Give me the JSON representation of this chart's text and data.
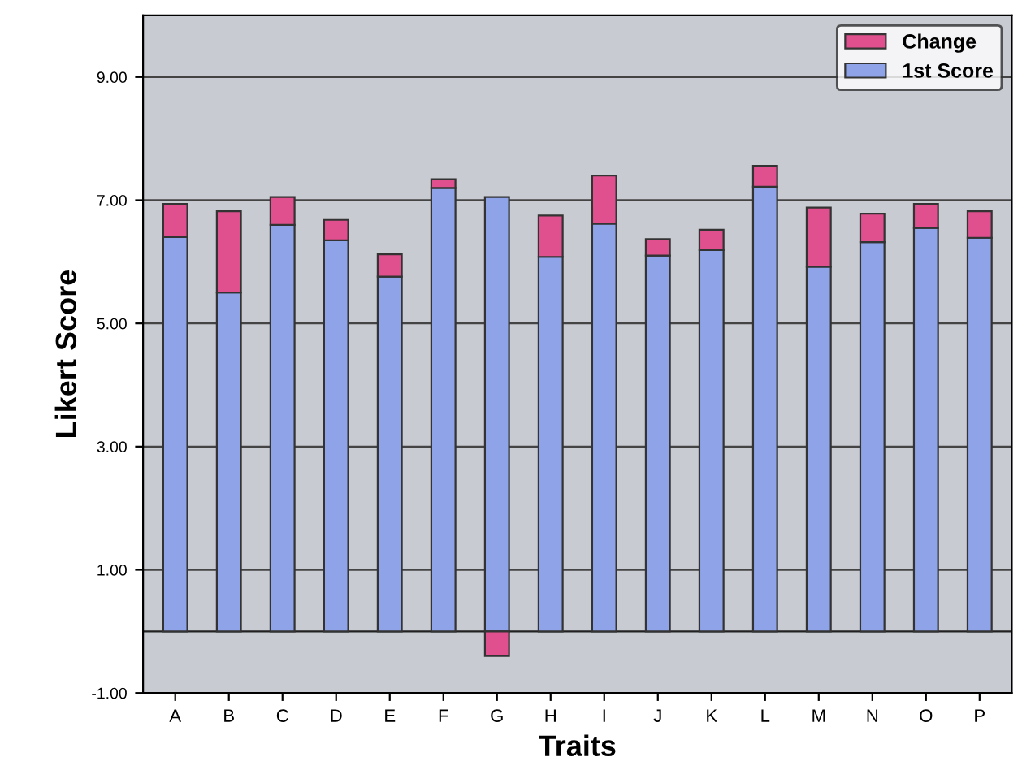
{
  "chart_data": {
    "type": "bar",
    "stacked": true,
    "xlabel": "Traits",
    "ylabel": "Likert Score",
    "categories": [
      "A",
      "B",
      "C",
      "D",
      "E",
      "F",
      "G",
      "H",
      "I",
      "J",
      "K",
      "L",
      "M",
      "N",
      "O",
      "P"
    ],
    "series": [
      {
        "name": "1st Score",
        "color": "#8fa4e8",
        "values": [
          6.4,
          5.5,
          6.6,
          6.35,
          5.76,
          7.2,
          7.05,
          6.08,
          6.62,
          6.1,
          6.19,
          7.22,
          5.92,
          6.32,
          6.55,
          6.39
        ]
      },
      {
        "name": "Change",
        "color": "#e0508f",
        "values": [
          0.54,
          1.32,
          0.45,
          0.33,
          0.36,
          0.14,
          -0.4,
          0.67,
          0.78,
          0.27,
          0.33,
          0.34,
          0.96,
          0.46,
          0.39,
          0.43
        ]
      }
    ],
    "ylim": [
      -1,
      10
    ],
    "yticks": [
      {
        "value": -1,
        "label": "-1.00"
      },
      {
        "value": 1,
        "label": "1.00"
      },
      {
        "value": 3,
        "label": "3.00"
      },
      {
        "value": 5,
        "label": "5.00"
      },
      {
        "value": 7,
        "label": "7.00"
      },
      {
        "value": 9,
        "label": "9.00"
      }
    ],
    "grid": "y",
    "legend": "top right"
  }
}
